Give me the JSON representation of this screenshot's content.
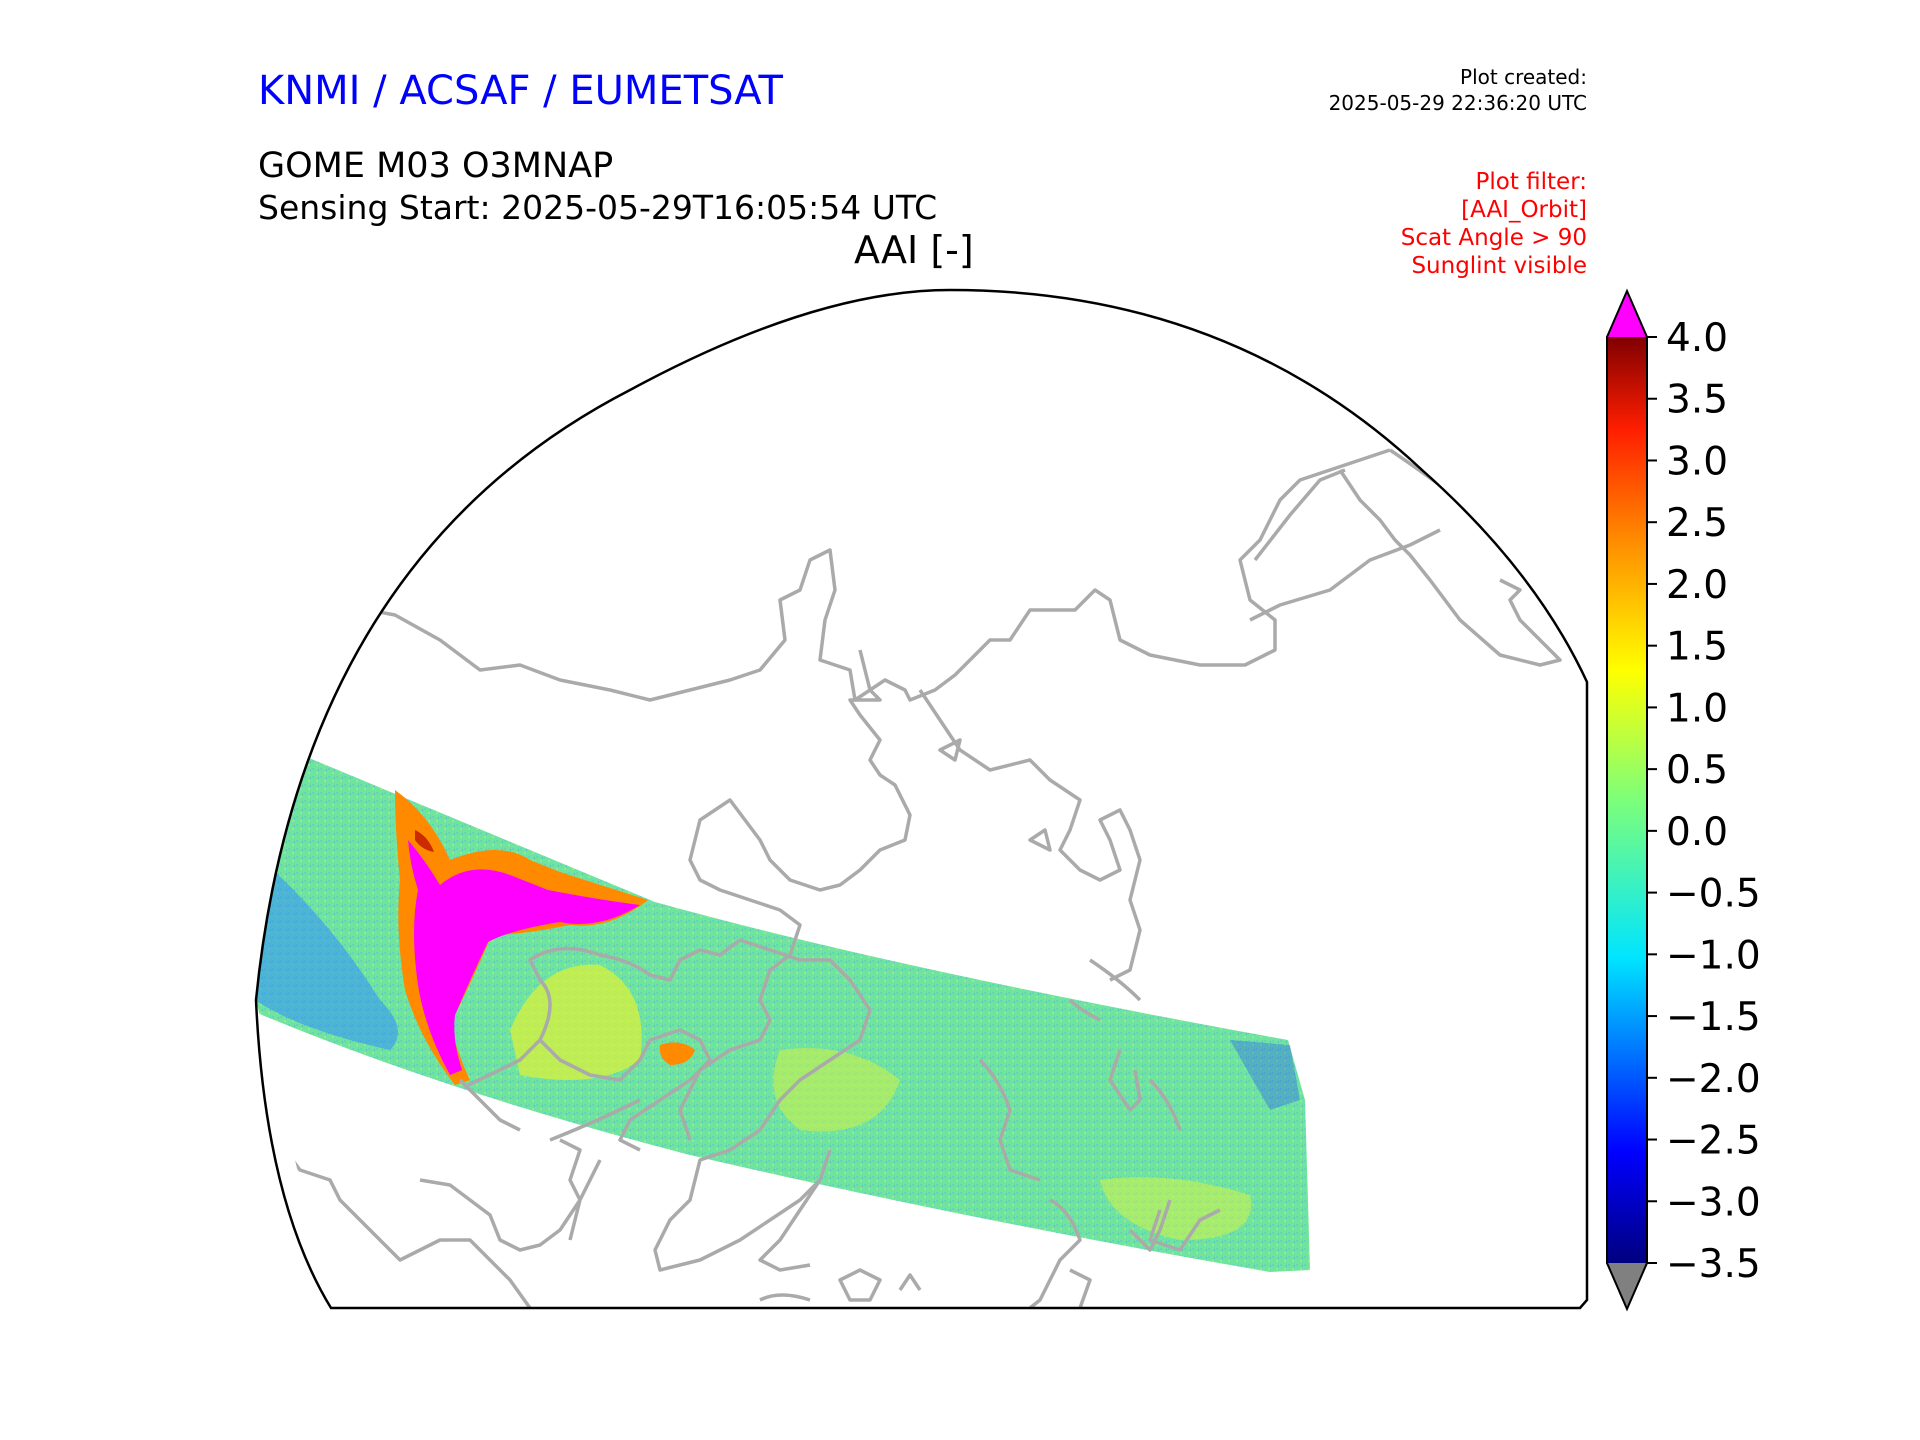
{
  "header": {
    "organisation": "KNMI / ACSAF / EUMETSAT",
    "product": "GOME M03 O3MNAP",
    "sensing_start": "Sensing Start: 2025-05-29T16:05:54 UTC",
    "plot_title": "AAI [-]",
    "created_label": "Plot created:",
    "created_value": "2025-05-29 22:36:20 UTC"
  },
  "filters": {
    "label": "Plot filter:",
    "items": [
      "[AAI_Orbit]",
      "Scat Angle > 90",
      "Sunglint visible"
    ]
  },
  "colorbar": {
    "min": -3.5,
    "max": 4.0,
    "ticks": [
      "4.0",
      "3.5",
      "3.0",
      "2.5",
      "2.0",
      "1.5",
      "1.0",
      "0.5",
      "0.0",
      "−0.5",
      "−1.0",
      "−1.5",
      "−2.0",
      "−2.5",
      "−3.0",
      "−3.5"
    ],
    "extend_max_color": "#ff00ff",
    "extend_min_color": "#808080"
  },
  "colors": {
    "coastline": "#aaaaaa",
    "high_aai": "#ff00ff",
    "swath_base": "#6fe4a0"
  }
}
